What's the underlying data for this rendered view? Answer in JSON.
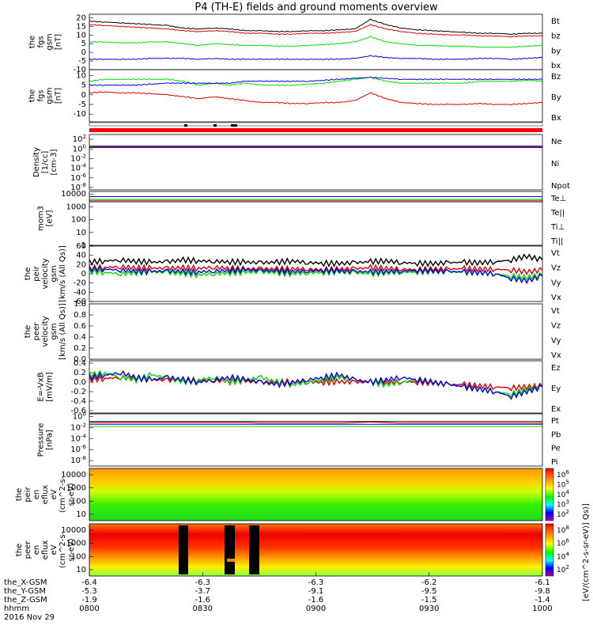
{
  "title": "P4 (TH-E) fields and ground moments overview",
  "date_label": "2016 Nov 29",
  "colors": {
    "black": "#000000",
    "red": "#e00000",
    "green": "#00dd00",
    "blue": "#0000dd"
  },
  "chart_data": [
    {
      "type": "line",
      "ylabel": [
        "the",
        "fgs",
        "gsm",
        "[nT]"
      ],
      "ylim": [
        -10,
        22
      ],
      "yticks": [
        20,
        15,
        10,
        5,
        0,
        -5,
        -10
      ],
      "series": [
        {
          "name": "Bt",
          "color": "black",
          "values": [
            18,
            17.5,
            17,
            16.5,
            16,
            15.5,
            14,
            13.5,
            14,
            13.5,
            12.5,
            12.5,
            12,
            12,
            12.5,
            12.5,
            13,
            13.5,
            19,
            16,
            14,
            13,
            12.5,
            12,
            11.5,
            11,
            11,
            10.5,
            11,
            11
          ]
        },
        {
          "name": "bz",
          "color": "red",
          "values": [
            16,
            15.5,
            15,
            14.5,
            14,
            13.5,
            12.5,
            12,
            12.5,
            12,
            11,
            11,
            10.5,
            10.5,
            11,
            11,
            11.5,
            12,
            16,
            13.5,
            12,
            11,
            10.5,
            10,
            10,
            9.5,
            9.5,
            9,
            9.5,
            9.5
          ]
        },
        {
          "name": "by",
          "color": "green",
          "values": [
            6,
            6,
            5.5,
            5.5,
            6,
            6,
            5,
            4,
            5,
            4.5,
            4,
            4,
            3.5,
            3.5,
            4,
            4.5,
            5,
            6,
            9,
            6,
            5,
            4,
            4,
            3.5,
            3.5,
            3,
            3,
            3,
            3.5,
            4
          ]
        },
        {
          "name": "bx",
          "color": "blue",
          "values": [
            -4,
            -4,
            -4,
            -4,
            -3.5,
            -3.5,
            -3.5,
            -4,
            -3.5,
            -4,
            -4,
            -4,
            -4,
            -4,
            -4,
            -4,
            -4,
            -3.5,
            -2,
            -3,
            -3.5,
            -3.5,
            -4,
            -4,
            -4,
            -3.5,
            -3.5,
            -4,
            -3.5,
            -3
          ]
        }
      ]
    },
    {
      "type": "line",
      "ylabel": [
        "the",
        "fgs",
        "gsm",
        "[nT]"
      ],
      "ylim": [
        -14,
        13
      ],
      "yticks": [
        10,
        5,
        0,
        -5,
        -10
      ],
      "series": [
        {
          "name": "Bz",
          "color": "red",
          "values": [
            1,
            1.5,
            1,
            1,
            0.5,
            0,
            -1,
            -2,
            -1,
            -2,
            -3,
            -4,
            -4,
            -4.5,
            -4.5,
            -4,
            -4,
            -3,
            1,
            -2,
            -4,
            -4.5,
            -5,
            -5,
            -5,
            -4.5,
            -5,
            -5,
            -4.5,
            -4
          ]
        },
        {
          "name": "By",
          "color": "green",
          "values": [
            7,
            8,
            8,
            8,
            8,
            8,
            7,
            5,
            6,
            5,
            6,
            5,
            5,
            5,
            5.5,
            6,
            7,
            8,
            9,
            7,
            6,
            6,
            6,
            6,
            6,
            7,
            7,
            7,
            7.5,
            7
          ]
        },
        {
          "name": "Bx",
          "color": "blue",
          "values": [
            5,
            5,
            5,
            5,
            5.5,
            6,
            6,
            6,
            6,
            6,
            7,
            7,
            7,
            7,
            7,
            7.5,
            8,
            8.5,
            9,
            8.5,
            8,
            8,
            8,
            8,
            8,
            8,
            8,
            8,
            8,
            8
          ]
        }
      ]
    },
    {
      "type": "line",
      "ylabel": [
        "Density",
        "[1/cc]",
        "[cm-3]"
      ],
      "yscale": "log",
      "ylim": [
        -8.5,
        3
      ],
      "yticks": [
        "10^2",
        "10^0",
        "10^-2",
        "10^-4",
        "10^-6",
        "10^-8"
      ],
      "series": [
        {
          "name": "Ne",
          "color": "red",
          "values": [
            0.5,
            0.5,
            0.5,
            0.5,
            0.5,
            0.5,
            0.5,
            0.5,
            0.5,
            0.5,
            0.5,
            0.5,
            0.5,
            0.5,
            0.5,
            0.5,
            0.5,
            0.5,
            0.5,
            0.5,
            0.5,
            0.5,
            0.5,
            0.5,
            0.5,
            0.5,
            0.5,
            0.5,
            0.5,
            0.5
          ]
        },
        {
          "name": "Ni",
          "color": "black",
          "values": [
            0.3,
            0.3,
            0.3,
            0.3,
            0.3,
            0.3,
            0.3,
            0.3,
            0.3,
            0.3,
            0.3,
            0.3,
            0.3,
            0.3,
            0.3,
            0.3,
            0.3,
            0.3,
            0.3,
            0.3,
            0.3,
            0.3,
            0.3,
            0.3,
            0.3,
            0.3,
            0.3,
            0.3,
            0.3,
            0.3
          ]
        },
        {
          "name": "Npot",
          "color": "blue",
          "values": [
            0.6,
            0.6,
            0.6,
            0.6,
            0.6,
            0.6,
            0.6,
            0.6,
            0.6,
            0.6,
            0.6,
            0.6,
            0.6,
            0.6,
            0.6,
            0.6,
            0.6,
            0.6,
            0.6,
            0.6,
            0.6,
            0.6,
            0.6,
            0.6,
            0.6,
            0.6,
            0.6,
            0.6,
            0.6,
            0.6
          ]
        }
      ]
    },
    {
      "type": "line",
      "ylabel": [
        "mom3",
        "[eV]"
      ],
      "yscale": "log",
      "ylim": [
        0,
        4.2
      ],
      "yticks": [
        "10000",
        "1000",
        "100",
        "10",
        "1"
      ],
      "series": [
        {
          "name": "Te⊥",
          "color": "red",
          "values": [
            3.5,
            3.5,
            3.5,
            3.5,
            3.5,
            3.5,
            3.5,
            3.5,
            3.5,
            3.5,
            3.5,
            3.5,
            3.5,
            3.5,
            3.5,
            3.5,
            3.5,
            3.5,
            3.5,
            3.5,
            3.5,
            3.5,
            3.5,
            3.5,
            3.5,
            3.5,
            3.5,
            3.5,
            3.5,
            3.5
          ]
        },
        {
          "name": "Te||",
          "color": "black",
          "values": [
            3.4,
            3.4,
            3.4,
            3.4,
            3.4,
            3.4,
            3.4,
            3.4,
            3.4,
            3.4,
            3.4,
            3.4,
            3.4,
            3.4,
            3.4,
            3.4,
            3.4,
            3.4,
            3.4,
            3.4,
            3.4,
            3.4,
            3.4,
            3.4,
            3.4,
            3.4,
            3.4,
            3.4,
            3.4,
            3.4
          ]
        },
        {
          "name": "Ti⊥",
          "color": "blue",
          "values": [
            3.8,
            3.8,
            3.8,
            3.8,
            3.8,
            3.8,
            3.8,
            3.8,
            3.8,
            3.8,
            3.8,
            3.8,
            3.8,
            3.8,
            3.8,
            3.8,
            3.8,
            3.8,
            3.8,
            3.8,
            3.8,
            3.8,
            3.8,
            3.8,
            3.8,
            3.8,
            3.8,
            3.8,
            3.8,
            3.8
          ]
        },
        {
          "name": "Ti||",
          "color": "green",
          "values": [
            3.6,
            3.6,
            3.6,
            3.6,
            3.6,
            3.6,
            3.6,
            3.6,
            3.6,
            3.6,
            3.6,
            3.6,
            3.6,
            3.6,
            3.6,
            3.6,
            3.6,
            3.6,
            3.6,
            3.6,
            3.6,
            3.6,
            3.6,
            3.6,
            3.6,
            3.6,
            3.6,
            3.6,
            3.6,
            3.6
          ]
        }
      ]
    },
    {
      "type": "line",
      "ylabel": [
        "the",
        "peir",
        "velocity",
        "gsm",
        "[km/s (All Qs)]"
      ],
      "ylim": [
        -60,
        60
      ],
      "yticks": [
        60,
        40,
        20,
        0,
        -20,
        -40,
        -60
      ],
      "series": [
        {
          "name": "Vt",
          "color": "black",
          "values": [
            25,
            28,
            30,
            27,
            25,
            26,
            30,
            28,
            27,
            26,
            25,
            24,
            25,
            28,
            24,
            23,
            22,
            24,
            26,
            28,
            24,
            23,
            22,
            24,
            25,
            24,
            26,
            30,
            38,
            30
          ]
        },
        {
          "name": "Vz",
          "color": "red",
          "values": [
            12,
            14,
            15,
            13,
            12,
            12,
            13,
            12,
            14,
            12,
            10,
            11,
            10,
            11,
            10,
            9,
            10,
            11,
            13,
            12,
            10,
            9,
            10,
            10,
            11,
            10,
            10,
            8,
            4,
            8
          ]
        },
        {
          "name": "Vy",
          "color": "green",
          "values": [
            5,
            3,
            0,
            2,
            4,
            3,
            0,
            -2,
            0,
            2,
            3,
            4,
            2,
            0,
            2,
            3,
            4,
            2,
            0,
            2,
            3,
            4,
            5,
            4,
            3,
            2,
            0,
            -5,
            -8,
            -3
          ]
        },
        {
          "name": "Vx",
          "color": "blue",
          "values": [
            10,
            10,
            8,
            6,
            5,
            6,
            5,
            4,
            6,
            7,
            8,
            7,
            6,
            5,
            6,
            7,
            6,
            5,
            4,
            5,
            6,
            7,
            6,
            5,
            4,
            3,
            0,
            -10,
            -15,
            -5
          ]
        }
      ]
    },
    {
      "type": "line",
      "ylabel": [
        "the",
        "peer",
        "velocity",
        "gsm",
        "[km/s (All Qs)]"
      ],
      "ylim": [
        0,
        1
      ],
      "yticks": [
        1.0,
        0.8,
        0.6,
        0.4,
        0.2,
        0.0
      ],
      "legend": [
        "Vt",
        "Vz",
        "Vy",
        "Vx"
      ],
      "series": []
    },
    {
      "type": "line",
      "ylabel": [
        "E=-VxB",
        "[mV/m]"
      ],
      "ylim": [
        -0.65,
        0.45
      ],
      "yticks": [
        0.4,
        0.2,
        0.0,
        -0.2,
        -0.4,
        -0.6
      ],
      "series": [
        {
          "name": "Ez",
          "color": "red",
          "values": [
            0.05,
            0.08,
            0.1,
            0.08,
            0.05,
            0.04,
            0.05,
            0.04,
            0.03,
            0.03,
            0.02,
            0.0,
            0.0,
            0.01,
            0.0,
            0.0,
            0.01,
            0.0,
            0.0,
            0.0,
            0.01,
            0.0,
            -0.02,
            -0.05,
            -0.05,
            -0.08,
            -0.1,
            -0.12,
            -0.1,
            -0.08
          ]
        },
        {
          "name": "Ey",
          "color": "green",
          "values": [
            0.15,
            0.2,
            0.1,
            0.05,
            0.15,
            0.1,
            0.0,
            0.05,
            0.1,
            0.0,
            0.05,
            0.1,
            0.0,
            -0.05,
            0.0,
            0.05,
            0.1,
            0.05,
            0.0,
            -0.05,
            0.0,
            0.05,
            0.0,
            -0.05,
            -0.1,
            -0.15,
            -0.2,
            -0.25,
            -0.15,
            -0.1
          ]
        },
        {
          "name": "Ex",
          "color": "blue",
          "values": [
            0.1,
            0.15,
            0.2,
            0.1,
            0.05,
            0.1,
            0.05,
            0.0,
            0.05,
            0.1,
            0.05,
            0.0,
            -0.05,
            0.0,
            0.05,
            0.1,
            0.15,
            0.05,
            0.0,
            0.05,
            0.1,
            0.05,
            0.0,
            -0.05,
            -0.1,
            -0.15,
            -0.2,
            -0.3,
            -0.2,
            -0.1
          ]
        }
      ]
    },
    {
      "type": "line",
      "ylabel": [
        "Pressure",
        "[nPa]"
      ],
      "yscale": "log",
      "ylim": [
        -9,
        0.5
      ],
      "yticks": [
        "10^0",
        "10^-2",
        "10^-4",
        "10^-6",
        "10^-8"
      ],
      "series": [
        {
          "name": "Pt",
          "color": "black",
          "values": [
            -0.9,
            -0.9,
            -0.9,
            -0.9,
            -0.9,
            -0.9,
            -0.9,
            -0.9,
            -0.9,
            -0.9,
            -0.9,
            -0.9,
            -0.9,
            -0.9,
            -0.9,
            -0.9,
            -0.9,
            -0.9,
            -0.9,
            -0.9,
            -0.9,
            -0.9,
            -0.9,
            -0.9,
            -0.9,
            -0.9,
            -0.9,
            -0.9,
            -0.9,
            -0.9
          ]
        },
        {
          "name": "Pb",
          "color": "red",
          "values": [
            -1.1,
            -1.1,
            -1.1,
            -1.1,
            -1.1,
            -1.1,
            -1.1,
            -1.1,
            -1.1,
            -1.1,
            -1.1,
            -1.2,
            -1.2,
            -1.2,
            -1.2,
            -1.2,
            -1.2,
            -1.1,
            -1.0,
            -1.1,
            -1.2,
            -1.2,
            -1.2,
            -1.2,
            -1.2,
            -1.2,
            -1.2,
            -1.2,
            -1.2,
            -1.2
          ]
        },
        {
          "name": "Pe",
          "color": "green",
          "values": [
            -1.8,
            -1.8,
            -1.8,
            -1.8,
            -1.8,
            -1.8,
            -1.8,
            -1.8,
            -1.8,
            -1.8,
            -1.8,
            -1.8,
            -1.8,
            -1.8,
            -1.8,
            -1.8,
            -1.8,
            -1.8,
            -1.8,
            -1.8,
            -1.8,
            -1.8,
            -1.8,
            -1.8,
            -1.8,
            -1.8,
            -1.8,
            -1.8,
            -1.8,
            -1.8
          ]
        },
        {
          "name": "Pi",
          "color": "blue",
          "values": [
            -1.4,
            -1.4,
            -1.4,
            -1.4,
            -1.4,
            -1.4,
            -1.4,
            -1.4,
            -1.4,
            -1.4,
            -1.4,
            -1.4,
            -1.4,
            -1.4,
            -1.4,
            -1.4,
            -1.4,
            -1.4,
            -1.4,
            -1.4,
            -1.4,
            -1.4,
            -1.4,
            -1.4,
            -1.4,
            -1.4,
            -1.4,
            -1.4,
            -1.4,
            -1.4
          ]
        }
      ]
    },
    {
      "type": "heatmap",
      "ylabel": [
        "the",
        "peir",
        "en",
        "eflux",
        "eV",
        "(cm^2-s-",
        "sr-eV)"
      ],
      "yticks": [
        "10000",
        "1000",
        "100",
        "10"
      ],
      "colorbar_ticks": [
        "10^6",
        "10^5",
        "10^4",
        "10^3",
        "10^2"
      ]
    },
    {
      "type": "heatmap",
      "ylabel": [
        "the",
        "peer",
        "en",
        "eflux",
        "eV",
        "(cm^2-s-",
        "sr-eV)"
      ],
      "yticks": [
        "10000",
        "1000",
        "100",
        "10"
      ],
      "colorbar_ticks": [
        "10^8",
        "10^6",
        "10^4",
        "10^2"
      ]
    }
  ],
  "colorbar_label": "[eV/(cm^2-s-sr-eV)] Qs)]",
  "xaxis": {
    "row_labels": [
      "the_X-GSM",
      "the_Y-GSM",
      "the_Z-GSM",
      "hhmm"
    ],
    "columns": [
      {
        "values": [
          "-6.4",
          "-5.3",
          "-1.9",
          "0800"
        ]
      },
      {
        "values": [
          "-6.3",
          "-3.7",
          "-1.6",
          "0830"
        ]
      },
      {
        "values": [
          "-6.3",
          "-9.1",
          "-1.6",
          "0900"
        ]
      },
      {
        "values": [
          "-6.2",
          "-9.5",
          "-1.5",
          "0930"
        ]
      },
      {
        "values": [
          "-6.1",
          "-9.8",
          "-1.4",
          "1000"
        ]
      }
    ]
  }
}
